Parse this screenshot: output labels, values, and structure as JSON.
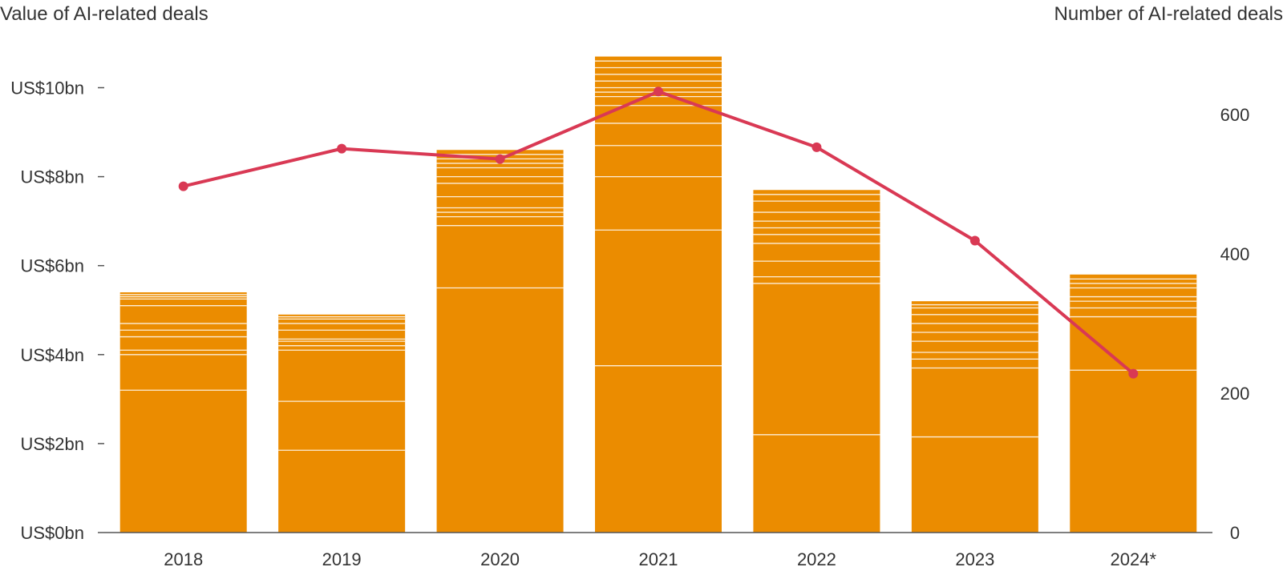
{
  "colors": {
    "bar": "#EB8C00",
    "bar_segment_line": "#FFFFFF",
    "line": "#D93954",
    "axis": "#555555",
    "text": "#333333"
  },
  "chart_data": {
    "type": "bar",
    "left_axis_title": "Value of AI-related deals",
    "right_axis_title": "Number of AI-related deals",
    "categories": [
      "2018",
      "2019",
      "2020",
      "2021",
      "2022",
      "2023",
      "2024*"
    ],
    "y_left": {
      "min": 0,
      "max": 11,
      "ticks": [
        0,
        2,
        4,
        6,
        8,
        10
      ],
      "tick_labels": [
        "US$0bn",
        "US$2bn",
        "US$4bn",
        "US$6bn",
        "US$8bn",
        "US$10bn"
      ]
    },
    "y_right": {
      "min": 0,
      "max": 700,
      "ticks": [
        0,
        200,
        400,
        600
      ],
      "tick_labels": [
        "0",
        "200",
        "400",
        "600"
      ]
    },
    "grid": false,
    "series": [
      {
        "type": "bar",
        "axis": "left",
        "values": [
          5.4,
          4.9,
          8.6,
          10.7,
          7.7,
          5.2,
          5.8
        ],
        "deal_boundaries": [
          [
            3.2,
            4.0,
            4.1,
            4.4,
            4.55,
            4.7,
            5.1,
            5.25,
            5.3,
            5.35
          ],
          [
            1.85,
            2.95,
            4.1,
            4.2,
            4.3,
            4.35,
            4.55,
            4.7,
            4.8,
            4.85
          ],
          [
            5.5,
            6.9,
            7.1,
            7.2,
            7.3,
            7.55,
            7.85,
            8.0,
            8.2,
            8.3,
            8.4,
            8.5
          ],
          [
            3.75,
            6.8,
            8.0,
            8.7,
            9.2,
            9.6,
            9.8,
            9.9,
            10.0,
            10.15,
            10.3,
            10.45,
            10.6
          ],
          [
            2.2,
            5.6,
            5.75,
            6.1,
            6.5,
            6.7,
            6.85,
            7.0,
            7.2,
            7.45,
            7.6
          ],
          [
            2.15,
            3.7,
            3.9,
            4.05,
            4.3,
            4.5,
            4.7,
            4.9,
            5.05,
            5.12
          ],
          [
            3.65,
            4.85,
            5.05,
            5.2,
            5.3,
            5.5,
            5.6,
            5.7
          ]
        ]
      },
      {
        "type": "line",
        "axis": "right",
        "values": [
          497,
          551,
          536,
          633,
          553,
          419,
          228
        ]
      }
    ]
  }
}
